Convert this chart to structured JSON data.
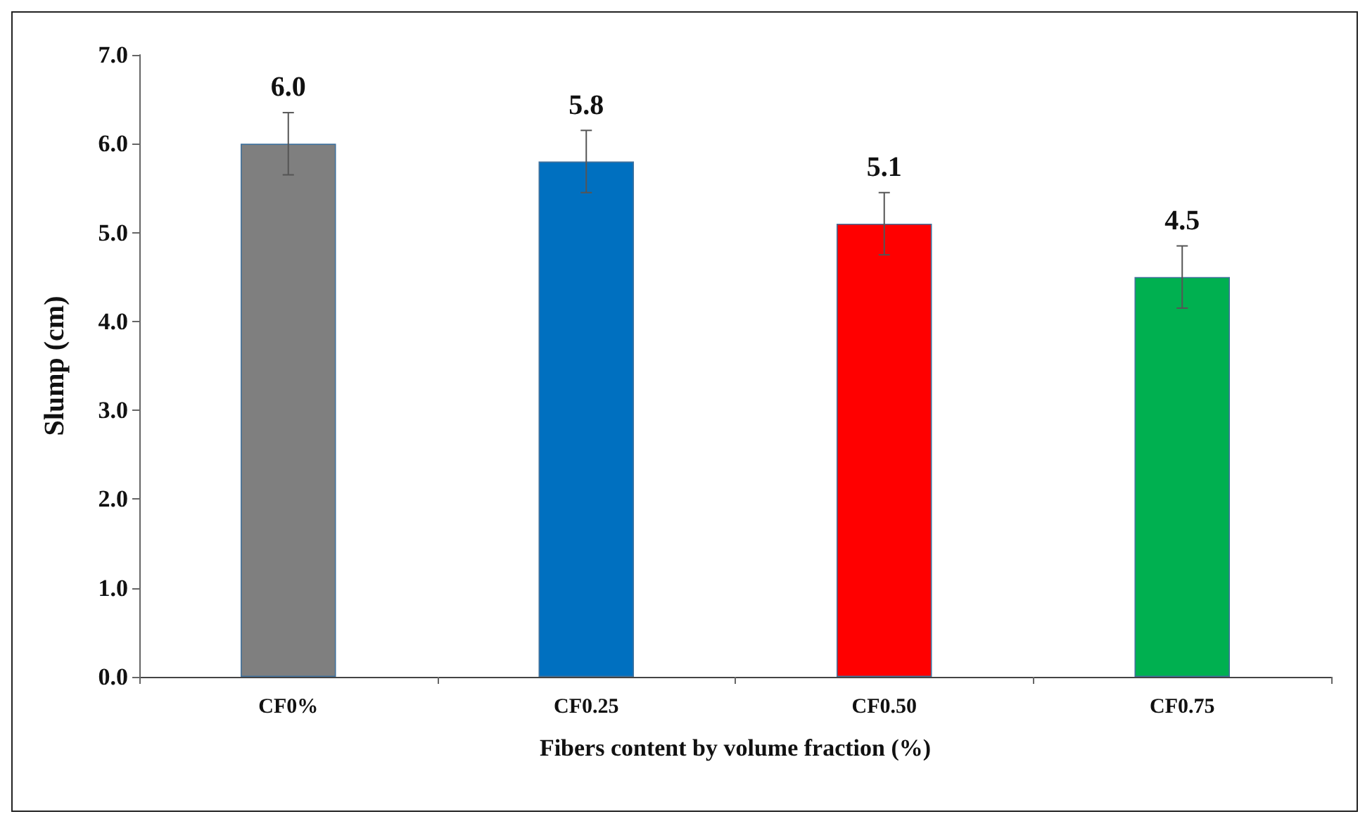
{
  "chart_data": {
    "type": "bar",
    "xlabel": "Fibers content by volume fraction (%)",
    "ylabel": "Slump (cm)",
    "categories": [
      "CF0%",
      "CF0.25",
      "CF0.50",
      "CF0.75"
    ],
    "values": [
      6.0,
      5.8,
      5.1,
      4.5
    ],
    "colors": [
      "#7f7f7f",
      "#0070c0",
      "#ff0000",
      "#00b050"
    ],
    "errors": [
      0.35,
      0.35,
      0.35,
      0.35
    ],
    "value_labels": [
      "6.0",
      "5.8",
      "5.1",
      "4.5"
    ],
    "ylim": [
      0,
      7
    ],
    "yticks": [
      {
        "value": 0,
        "label": "0.0"
      },
      {
        "value": 1,
        "label": "1.0"
      },
      {
        "value": 2,
        "label": "2.0"
      },
      {
        "value": 3,
        "label": "3.0"
      },
      {
        "value": 4,
        "label": "4.0"
      },
      {
        "value": 5,
        "label": "5.0"
      },
      {
        "value": 6,
        "label": "6.0"
      },
      {
        "value": 7,
        "label": "7.0"
      }
    ],
    "grid": false
  }
}
